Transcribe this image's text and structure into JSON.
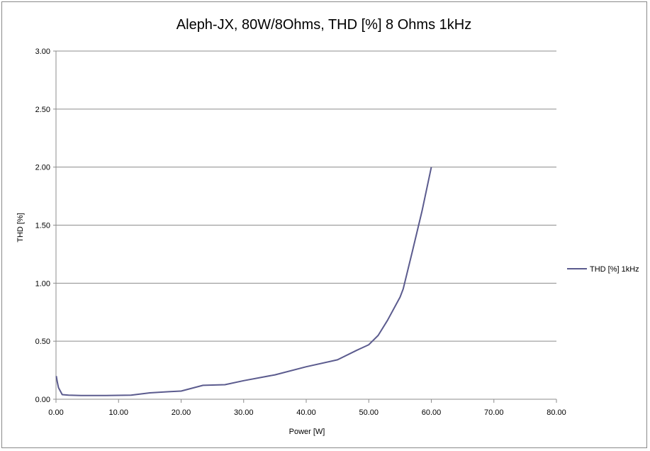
{
  "chart_data": {
    "type": "line",
    "title": "Aleph-JX, 80W/8Ohms, THD [%] 8 Ohms 1kHz",
    "xlabel": "Power [W]",
    "ylabel": "THD [%]",
    "xlim": [
      0,
      80
    ],
    "ylim": [
      0,
      3
    ],
    "x_ticks": [
      "0.00",
      "10.00",
      "20.00",
      "30.00",
      "40.00",
      "50.00",
      "60.00",
      "70.00",
      "80.00"
    ],
    "y_ticks": [
      "0.00",
      "0.50",
      "1.00",
      "1.50",
      "2.00",
      "2.50",
      "3.00"
    ],
    "grid": "horizontal",
    "legend_position": "right",
    "series": [
      {
        "name": "THD [%] 1kHz",
        "color": "#5b5b8e",
        "points": [
          [
            0.05,
            0.2
          ],
          [
            0.2,
            0.15
          ],
          [
            0.4,
            0.1
          ],
          [
            1.0,
            0.04
          ],
          [
            2.0,
            0.035
          ],
          [
            4.0,
            0.032
          ],
          [
            8.0,
            0.032
          ],
          [
            12.0,
            0.035
          ],
          [
            15.0,
            0.055
          ],
          [
            18.0,
            0.065
          ],
          [
            20.0,
            0.07
          ],
          [
            23.5,
            0.12
          ],
          [
            27.0,
            0.125
          ],
          [
            30.0,
            0.16
          ],
          [
            35.0,
            0.21
          ],
          [
            40.0,
            0.28
          ],
          [
            45.0,
            0.34
          ],
          [
            48.0,
            0.42
          ],
          [
            50.0,
            0.47
          ],
          [
            51.5,
            0.55
          ],
          [
            53.0,
            0.68
          ],
          [
            55.0,
            0.88
          ],
          [
            55.5,
            0.95
          ],
          [
            57.0,
            1.28
          ],
          [
            58.5,
            1.62
          ],
          [
            60.0,
            2.0
          ]
        ]
      }
    ]
  }
}
